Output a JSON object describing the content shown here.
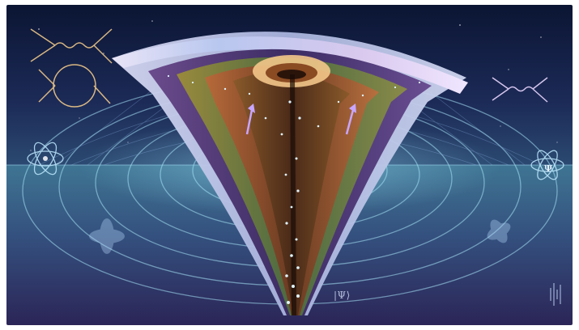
{
  "image": {
    "ket_label": "|Ψ⟩",
    "psi_symbol": "Ψ"
  },
  "colors": {
    "sky_top": "#0e1a3c",
    "sky_mid": "#21305e",
    "water_top": "#3c6f8c",
    "water_bottom": "#2a2658",
    "funnel_rim": "#bcc7e8",
    "funnel_core": "#6a3a22",
    "accent_violet": "#a58bf0",
    "accent_cyan": "#7fe6ff",
    "accent_gold": "#f0b860"
  },
  "icons": [
    "feynman-diagram-icon-left",
    "feynman-diagram-icon-right",
    "atom-icon-left",
    "atom-icon-right",
    "orbital-icon-left",
    "orbital-icon-right",
    "waveform-icon"
  ]
}
